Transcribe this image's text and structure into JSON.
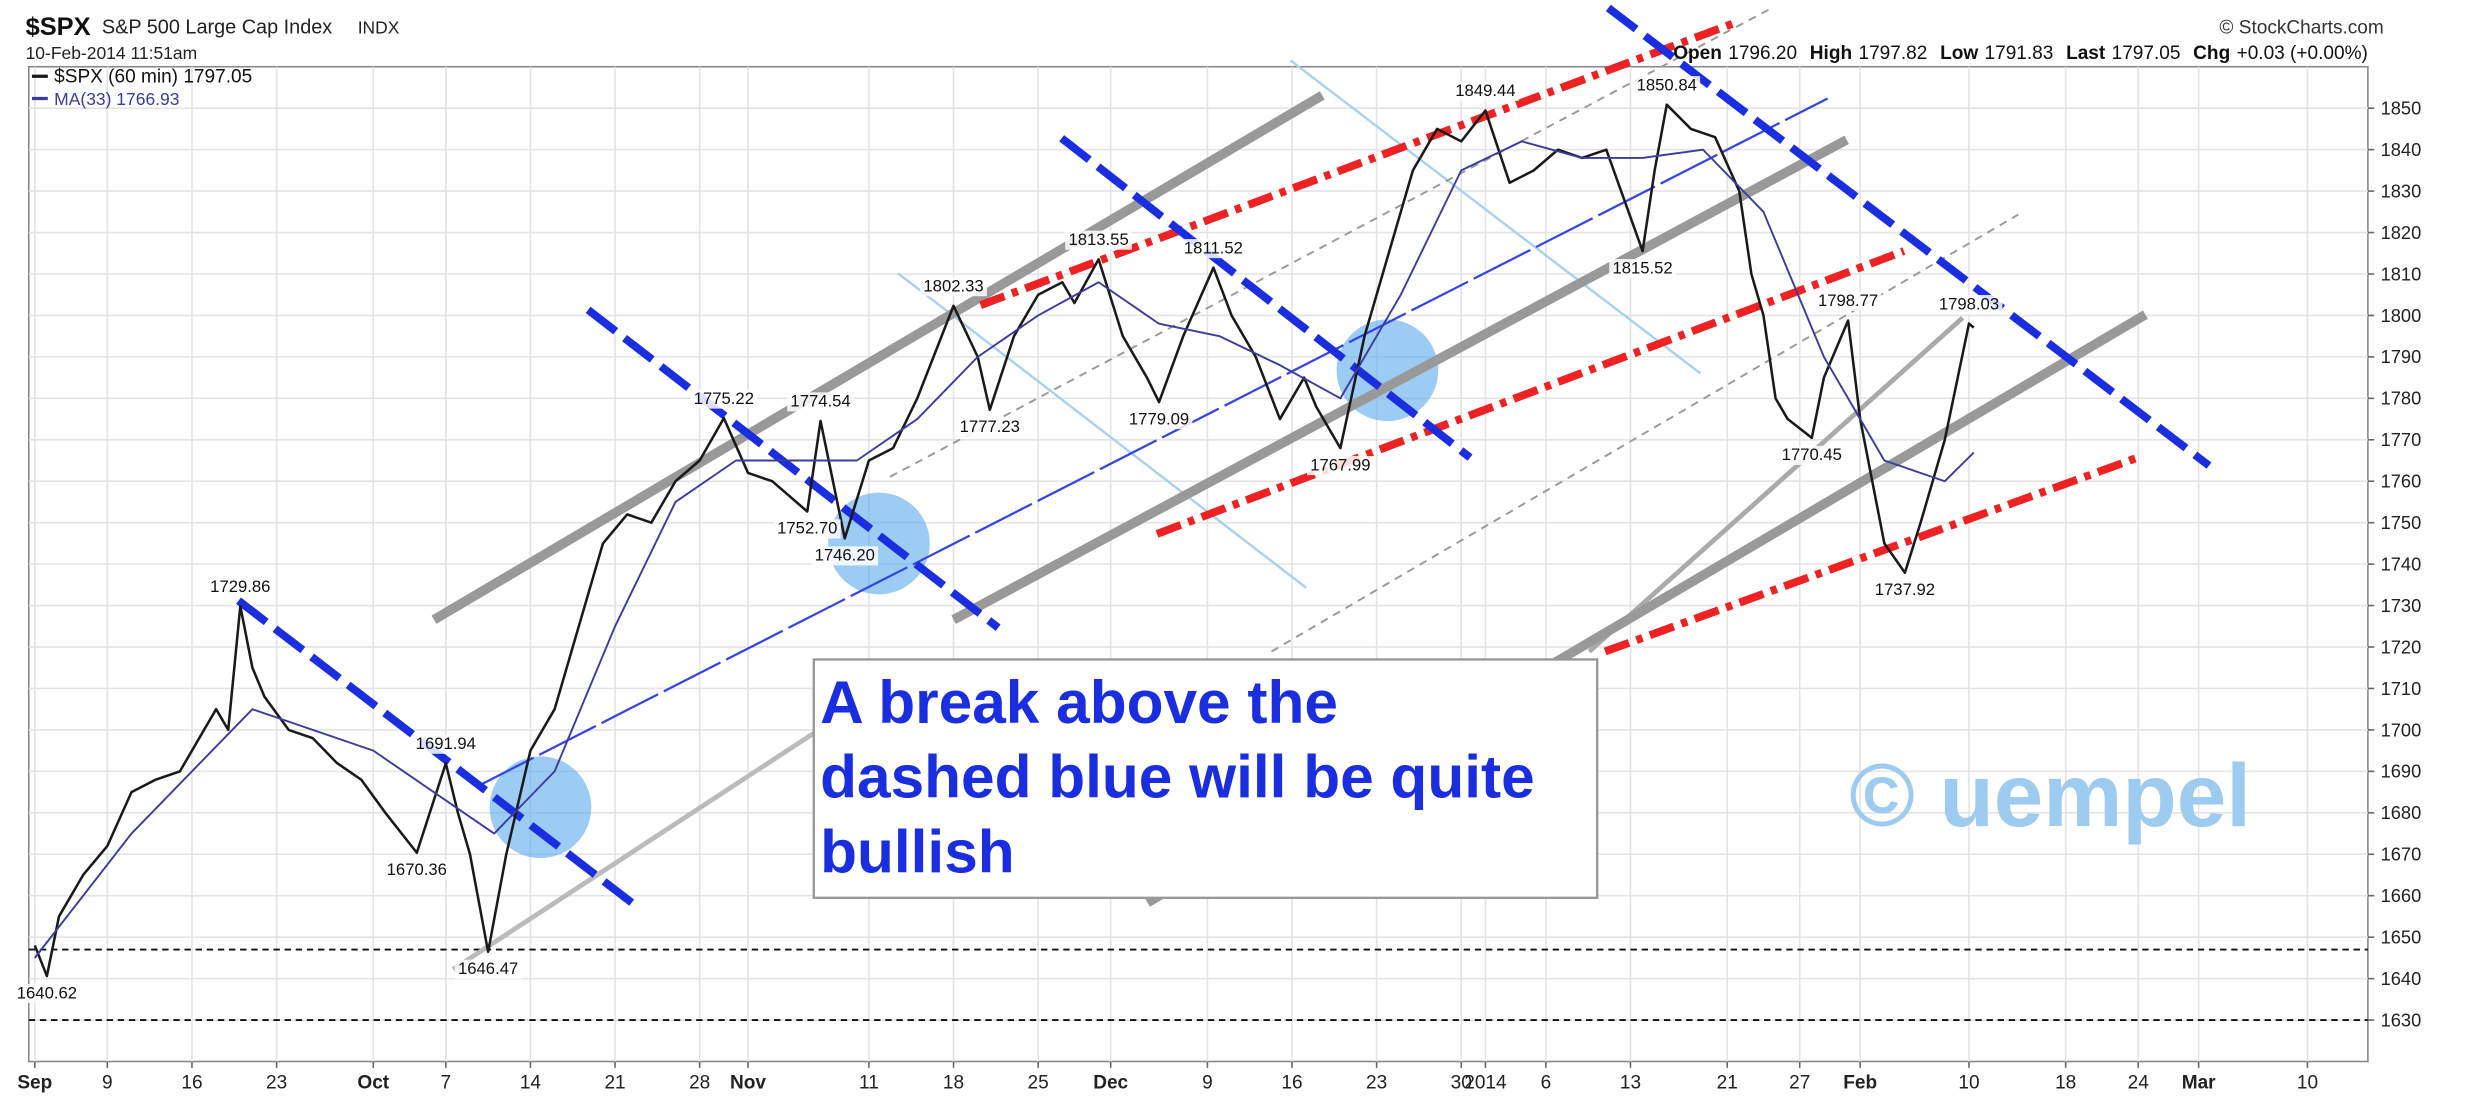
{
  "chart_data": {
    "type": "line",
    "title": "$SPX",
    "subtitle": "S&P 500 Large Cap Index",
    "exchange": "INDX",
    "timestamp": "10-Feb-2014 11:51am",
    "source": "© StockCharts.com",
    "header_stats": [
      {
        "label": "Open",
        "value": "1796.20"
      },
      {
        "label": "High",
        "value": "1797.82"
      },
      {
        "label": "Low",
        "value": "1791.83"
      },
      {
        "label": "Last",
        "value": "1797.05"
      },
      {
        "label": "Chg",
        "value": "+0.03 (+0.00%)"
      }
    ],
    "annotation_lines": [
      "A break above the",
      "dashed blue will be quite",
      "bullish"
    ],
    "watermark": "© uempel",
    "xlim": [
      1.5,
      195
    ],
    "xticks": [
      {
        "value": 2,
        "label": "Sep"
      },
      {
        "value": 8,
        "label": "9"
      },
      {
        "value": 15,
        "label": "16"
      },
      {
        "value": 22,
        "label": "23"
      },
      {
        "value": 30,
        "label": "Oct"
      },
      {
        "value": 36,
        "label": "7"
      },
      {
        "value": 43,
        "label": "14"
      },
      {
        "value": 50,
        "label": "21"
      },
      {
        "value": 57,
        "label": "28"
      },
      {
        "value": 61,
        "label": "Nov"
      },
      {
        "value": 71,
        "label": "11"
      },
      {
        "value": 78,
        "label": "18"
      },
      {
        "value": 85,
        "label": "25"
      },
      {
        "value": 91,
        "label": "Dec"
      },
      {
        "value": 99,
        "label": "9"
      },
      {
        "value": 106,
        "label": "16"
      },
      {
        "value": 113,
        "label": "23"
      },
      {
        "value": 120,
        "label": "30"
      },
      {
        "value": 122,
        "label": "2014"
      },
      {
        "value": 127,
        "label": "6"
      },
      {
        "value": 134,
        "label": "13"
      },
      {
        "value": 142,
        "label": "21"
      },
      {
        "value": 148,
        "label": "27"
      },
      {
        "value": 153,
        "label": "Feb"
      },
      {
        "value": 162,
        "label": "10"
      },
      {
        "value": 170,
        "label": "18"
      },
      {
        "value": 176,
        "label": "24"
      },
      {
        "value": 181,
        "label": "Mar"
      },
      {
        "value": 190,
        "label": "10"
      }
    ],
    "ylim": [
      1620,
      1860
    ],
    "yticks": [
      1630,
      1640,
      1650,
      1660,
      1670,
      1680,
      1690,
      1700,
      1710,
      1720,
      1730,
      1740,
      1750,
      1760,
      1770,
      1780,
      1790,
      1800,
      1810,
      1820,
      1830,
      1840,
      1850
    ],
    "grid": true,
    "hlines": [
      1647,
      1630
    ],
    "series": [
      {
        "name": "$SPX (60 min) 1797.05",
        "color": "#1a1a1a",
        "x": [
          2,
          3,
          4,
          6,
          8,
          10,
          12,
          14,
          16,
          17,
          18,
          19,
          20,
          21,
          23,
          25,
          27,
          29,
          31,
          33.6,
          36,
          37,
          38,
          39.5,
          41,
          43,
          45,
          47,
          49,
          51,
          53,
          55,
          57,
          59,
          61,
          63,
          65.9,
          67,
          69,
          71,
          73,
          75,
          78,
          80,
          81,
          83,
          85,
          87,
          88,
          90,
          92,
          94,
          95,
          97,
          99.5,
          101,
          103,
          105,
          107,
          108,
          110,
          112,
          114,
          116,
          118,
          120,
          122,
          124,
          126,
          128,
          130,
          132,
          135,
          136,
          137,
          139,
          141,
          143,
          144,
          145,
          146,
          147,
          149,
          150,
          152,
          153,
          154,
          155,
          156.7,
          158,
          160,
          162,
          162.4
        ],
        "values": [
          1648,
          1640.62,
          1655,
          1665,
          1672,
          1685,
          1688,
          1690,
          1700,
          1705,
          1700,
          1729.86,
          1715,
          1708,
          1700,
          1698,
          1692,
          1688,
          1680,
          1670.36,
          1691.94,
          1680,
          1670,
          1646.47,
          1670,
          1695,
          1705,
          1725,
          1745,
          1752,
          1750,
          1760,
          1765,
          1775.22,
          1762,
          1760,
          1752.7,
          1774.54,
          1746.2,
          1765,
          1768,
          1780,
          1802.33,
          1790,
          1777.23,
          1795,
          1805,
          1808,
          1803,
          1813.55,
          1795,
          1785,
          1779.09,
          1795,
          1811.52,
          1800,
          1790,
          1775,
          1785,
          1778,
          1767.99,
          1795,
          1815,
          1835,
          1845,
          1842,
          1849.44,
          1832,
          1835,
          1840,
          1838,
          1840,
          1815.52,
          1835,
          1850.84,
          1845,
          1843,
          1830,
          1810,
          1800,
          1780,
          1775,
          1770.45,
          1785,
          1798.77,
          1775,
          1760,
          1745,
          1737.92,
          1750,
          1770,
          1798.03,
          1797.05
        ],
        "value_labels": [
          null,
          "1640.62",
          null,
          null,
          null,
          null,
          null,
          null,
          null,
          null,
          null,
          "1729.86",
          null,
          null,
          null,
          null,
          null,
          null,
          null,
          "1670.36",
          "1691.94",
          null,
          null,
          "1646.47",
          null,
          null,
          null,
          null,
          null,
          null,
          null,
          null,
          null,
          "1775.22",
          null,
          null,
          "1752.70",
          "1774.54",
          "1746.20",
          null,
          null,
          null,
          "1802.33",
          null,
          "1777.23",
          null,
          null,
          null,
          null,
          "1813.55",
          null,
          null,
          "1779.09",
          null,
          "1811.52",
          null,
          null,
          null,
          null,
          null,
          "1767.99",
          null,
          null,
          null,
          null,
          null,
          "1849.44",
          null,
          null,
          null,
          null,
          null,
          "1815.52",
          null,
          "1850.84",
          null,
          null,
          null,
          null,
          null,
          null,
          null,
          "1770.45",
          null,
          "1798.77",
          null,
          null,
          null,
          "1737.92",
          null,
          null,
          "1798.03",
          null
        ]
      },
      {
        "name": "MA(33) 1766.93",
        "color": "#3b3ba0",
        "x": [
          2,
          10,
          20,
          30,
          40,
          45,
          50,
          55,
          60,
          65,
          70,
          75,
          80,
          85,
          90,
          95,
          100,
          105,
          110,
          115,
          120,
          125,
          130,
          135,
          140,
          145,
          150,
          155,
          160,
          162.4
        ],
        "values": [
          1645,
          1675,
          1705,
          1695,
          1675,
          1690,
          1725,
          1755,
          1765,
          1765,
          1765,
          1775,
          1790,
          1800,
          1808,
          1798,
          1795,
          1788,
          1780,
          1805,
          1835,
          1842,
          1838,
          1838,
          1840,
          1825,
          1790,
          1765,
          1760,
          1766.93
        ]
      }
    ]
  }
}
